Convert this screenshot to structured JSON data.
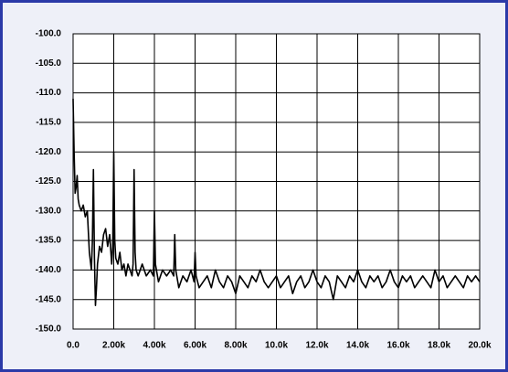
{
  "chart_data": {
    "type": "line",
    "color": "#000000",
    "grid": true,
    "xlim": [
      0,
      20000
    ],
    "ylim": [
      -150,
      -100
    ],
    "xticks": [
      {
        "value": 0,
        "label": "0.0"
      },
      {
        "value": 2000,
        "label": "2.00k"
      },
      {
        "value": 4000,
        "label": "4.00k"
      },
      {
        "value": 6000,
        "label": "6.00k"
      },
      {
        "value": 8000,
        "label": "8.00k"
      },
      {
        "value": 10000,
        "label": "10.0k"
      },
      {
        "value": 12000,
        "label": "12.0k"
      },
      {
        "value": 14000,
        "label": "14.0k"
      },
      {
        "value": 16000,
        "label": "16.0k"
      },
      {
        "value": 18000,
        "label": "18.0k"
      },
      {
        "value": 20000,
        "label": "20.0k"
      }
    ],
    "yticks": [
      {
        "value": -100,
        "label": "-100.0"
      },
      {
        "value": -105,
        "label": "-105.0"
      },
      {
        "value": -110,
        "label": "-110.0"
      },
      {
        "value": -115,
        "label": "-115.0"
      },
      {
        "value": -120,
        "label": "-120.0"
      },
      {
        "value": -125,
        "label": "-125.0"
      },
      {
        "value": -130,
        "label": "-130.0"
      },
      {
        "value": -135,
        "label": "-135.0"
      },
      {
        "value": -140,
        "label": "-140.0"
      },
      {
        "value": -145,
        "label": "-145.0"
      },
      {
        "value": -150,
        "label": "-150.0"
      }
    ],
    "x": [
      0,
      50,
      100,
      150,
      200,
      250,
      300,
      400,
      500,
      600,
      700,
      800,
      900,
      950,
      1000,
      1050,
      1100,
      1150,
      1200,
      1300,
      1400,
      1500,
      1600,
      1700,
      1800,
      1900,
      1950,
      2000,
      2050,
      2100,
      2200,
      2300,
      2400,
      2500,
      2600,
      2700,
      2800,
      2900,
      2950,
      3000,
      3050,
      3100,
      3200,
      3400,
      3600,
      3800,
      3950,
      4000,
      4050,
      4200,
      4400,
      4600,
      4800,
      4950,
      5000,
      5050,
      5200,
      5400,
      5600,
      5800,
      5950,
      6000,
      6050,
      6200,
      6400,
      6600,
      6800,
      7000,
      7200,
      7400,
      7600,
      7800,
      8000,
      8200,
      8400,
      8600,
      8800,
      9000,
      9200,
      9400,
      9600,
      9800,
      10000,
      10200,
      10400,
      10600,
      10800,
      11000,
      11200,
      11400,
      11600,
      11800,
      12000,
      12200,
      12400,
      12600,
      12800,
      13000,
      13200,
      13400,
      13600,
      13800,
      14000,
      14200,
      14400,
      14600,
      14800,
      15000,
      15200,
      15400,
      15600,
      15800,
      16000,
      16200,
      16400,
      16600,
      16800,
      17000,
      17200,
      17400,
      17600,
      17800,
      18000,
      18200,
      18400,
      18600,
      18800,
      19000,
      19200,
      19400,
      19600,
      19800,
      20000
    ],
    "values": [
      -111,
      -120,
      -127,
      -126,
      -124,
      -128,
      -129,
      -130,
      -129,
      -131,
      -130,
      -137,
      -140,
      -135,
      -123,
      -138,
      -146,
      -143,
      -139,
      -136,
      -137,
      -134,
      -133,
      -136,
      -134,
      -139,
      -136,
      -120,
      -135,
      -138,
      -139,
      -137,
      -140,
      -139,
      -141,
      -139,
      -140,
      -141,
      -139,
      -123,
      -137,
      -140,
      -141,
      -139,
      -141,
      -140,
      -141,
      -130,
      -139,
      -142,
      -140,
      -141,
      -140,
      -141,
      -134,
      -140,
      -143,
      -141,
      -142,
      -140,
      -142,
      -137,
      -141,
      -143,
      -142,
      -141,
      -143,
      -140,
      -142,
      -143,
      -141,
      -142,
      -144,
      -141,
      -142,
      -143,
      -141,
      -142,
      -140,
      -142,
      -143,
      -142,
      -141,
      -143,
      -142,
      -141,
      -144,
      -142,
      -141,
      -143,
      -142,
      -140,
      -142,
      -143,
      -141,
      -142,
      -145,
      -141,
      -142,
      -143,
      -141,
      -142,
      -140,
      -142,
      -143,
      -141,
      -142,
      -141,
      -143,
      -142,
      -140,
      -142,
      -143,
      -141,
      -142,
      -141,
      -143,
      -142,
      -141,
      -142,
      -143,
      -140,
      -142,
      -141,
      -143,
      -142,
      -141,
      -142,
      -143,
      -141,
      -142,
      -141,
      -142
    ]
  }
}
